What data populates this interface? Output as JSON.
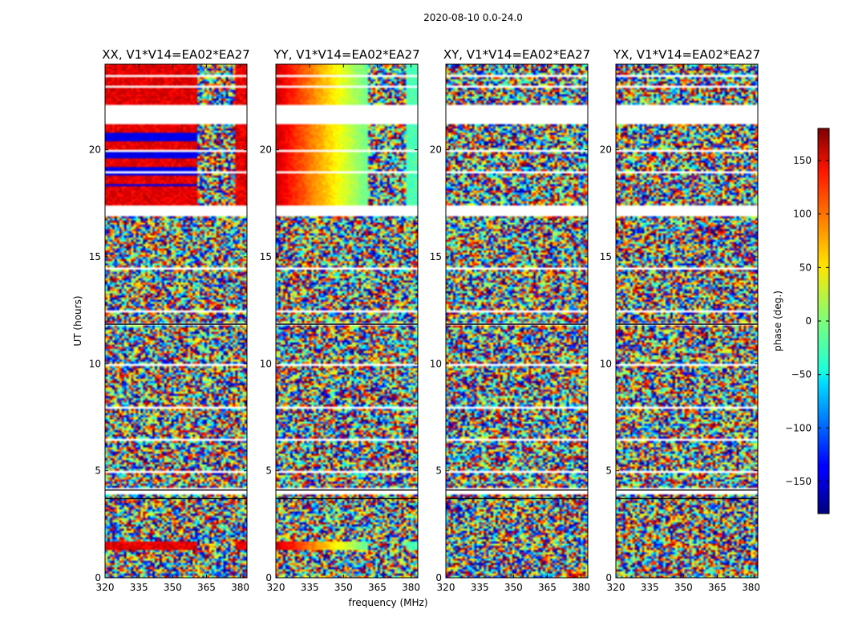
{
  "chart_data": {
    "type": "heatmap",
    "suptitle": "2020-08-10 0.0-24.0",
    "panels": [
      {
        "title": "XX, V1*V14=EA02*EA27",
        "pol": "XX"
      },
      {
        "title": "YY, V1*V14=EA02*EA27",
        "pol": "YY"
      },
      {
        "title": "XY, V1*V14=EA02*EA27",
        "pol": "XY"
      },
      {
        "title": "YX, V1*V14=EA02*EA27",
        "pol": "YX"
      }
    ],
    "xlabel": "frequency (MHz)",
    "ylabel": "UT (hours)",
    "xlim": [
      320,
      383
    ],
    "ylim": [
      0,
      24
    ],
    "xticks": [
      320,
      335,
      350,
      365,
      380
    ],
    "yticks": [
      0,
      5,
      10,
      15,
      20
    ],
    "colorbar": {
      "label": "phase (deg.)",
      "range": [
        -180,
        180
      ],
      "ticks": [
        -150,
        -100,
        -50,
        0,
        50,
        100,
        150
      ],
      "tick_labels": [
        "−150",
        "−100",
        "−50",
        "0",
        "50",
        "100",
        "150"
      ],
      "colormap": "jet"
    },
    "blank_time_ranges_hours": [
      [
        21.2,
        22.1
      ],
      [
        16.9,
        17.4
      ],
      [
        11.8,
        11.95
      ],
      [
        4.05,
        4.15
      ],
      [
        3.65,
        3.75
      ]
    ],
    "high_coherence_time_ranges_hours": [
      [
        17.4,
        24.0
      ],
      [
        1.35,
        1.65
      ]
    ],
    "band_edges_mhz": [
      361,
      378
    ]
  }
}
